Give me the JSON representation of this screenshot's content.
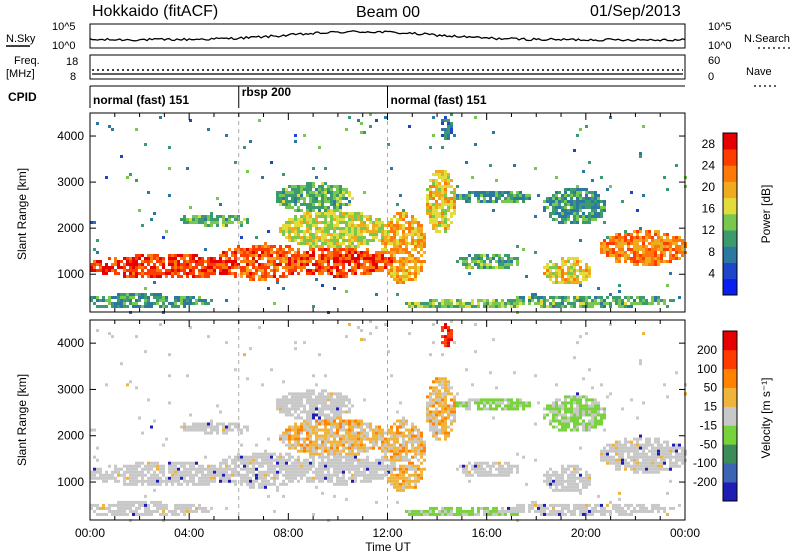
{
  "header": {
    "station": "Hokkaido (fitACF)",
    "beam": "Beam 00",
    "date": "01/Sep/2013"
  },
  "nsky_panel": {
    "left_label": "N.Sky",
    "right_label": "N.Search",
    "left_ticks": [
      "10^5",
      "10^0"
    ],
    "right_ticks": [
      "10^5",
      "10^0"
    ]
  },
  "freq_panel": {
    "left_label_1": "Freq.",
    "left_label_2": "[MHz]",
    "right_label": "Nave",
    "left_ticks": [
      "18",
      "8"
    ],
    "right_ticks": [
      "60",
      "0"
    ]
  },
  "cpid_panel": {
    "label": "CPID",
    "modes": [
      {
        "text": "normal (fast) 151",
        "start_hour": 0
      },
      {
        "text": "rbsp 200",
        "start_hour": 6
      },
      {
        "text": "normal (fast) 151",
        "start_hour": 12
      }
    ]
  },
  "chart_data": [
    {
      "type": "heatmap",
      "title": "Power",
      "ylabel": "Slant Range [km]",
      "xlabel": "Time UT",
      "ylim": [
        180,
        4500
      ],
      "xlim_hours": [
        0,
        24
      ],
      "y_ticks": [
        "1000",
        "2000",
        "3000",
        "4000"
      ],
      "colorbar": {
        "label": "Power [dB]",
        "ticks": [
          "4",
          "8",
          "12",
          "16",
          "20",
          "24",
          "28"
        ],
        "range": [
          0,
          30
        ],
        "colors": [
          "#0a1ef0",
          "#1e46c8",
          "#2d78a0",
          "#3c9b6e",
          "#78c850",
          "#e1dc3c",
          "#f0aa1e",
          "#ff780a",
          "#ff3c00",
          "#e60000"
        ]
      }
    },
    {
      "type": "heatmap",
      "title": "Velocity",
      "ylabel": "Slant Range [km]",
      "xlabel": "Time UT",
      "ylim": [
        180,
        4500
      ],
      "xlim_hours": [
        0,
        24
      ],
      "y_ticks": [
        "1000",
        "2000",
        "3000",
        "4000"
      ],
      "colorbar": {
        "label": "Velocity [m s⁻¹]",
        "ticks": [
          "200",
          "100",
          "50",
          "15",
          "-15",
          "-50",
          "-100",
          "-200"
        ],
        "colors": [
          "#1e1eb4",
          "#3c64b4",
          "#3c8c5a",
          "#78d23c",
          "#c8c8c8",
          "#f0b43c",
          "#ff8200",
          "#ff3c00",
          "#e60000"
        ]
      }
    }
  ],
  "time_axis": {
    "ticks": [
      "00:00",
      "04:00",
      "08:00",
      "12:00",
      "16:00",
      "20:00",
      "00:00"
    ],
    "label": "Time UT"
  }
}
